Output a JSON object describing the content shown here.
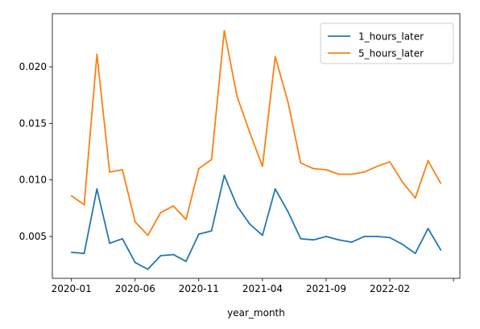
{
  "chart_data": {
    "type": "line",
    "title": "",
    "xlabel": "year_month",
    "ylabel": "",
    "x": [
      "2020-01",
      "2020-02",
      "2020-03",
      "2020-04",
      "2020-05",
      "2020-06",
      "2020-07",
      "2020-08",
      "2020-09",
      "2020-10",
      "2020-11",
      "2020-12",
      "2021-01",
      "2021-02",
      "2021-03",
      "2021-04",
      "2021-05",
      "2021-06",
      "2021-07",
      "2021-08",
      "2021-09",
      "2021-10",
      "2021-11",
      "2021-12",
      "2022-01",
      "2022-02",
      "2022-03",
      "2022-04",
      "2022-05",
      "2022-06"
    ],
    "x_ticks": [
      "2020-01",
      "2020-06",
      "2020-11",
      "2021-04",
      "2021-09",
      "2022-02",
      ""
    ],
    "y_ticks": [
      "0.005",
      "0.010",
      "0.015",
      "0.020"
    ],
    "y_tick_values": [
      0.005,
      0.01,
      0.015,
      0.02
    ],
    "ylim": [
      0.0013,
      0.0247
    ],
    "xlim": [
      -1.5,
      30.5
    ],
    "grid": false,
    "legend_position": "top-right",
    "series": [
      {
        "name": "1_hours_later",
        "color": "#1f77b4",
        "values": [
          0.0036,
          0.0035,
          0.0092,
          0.0044,
          0.0048,
          0.0027,
          0.0021,
          0.0033,
          0.0034,
          0.0028,
          0.0052,
          0.0055,
          0.0104,
          0.0077,
          0.0061,
          0.0051,
          0.0092,
          0.0072,
          0.0048,
          0.0047,
          0.005,
          0.0047,
          0.0045,
          0.005,
          0.005,
          0.0049,
          0.0043,
          0.0035,
          0.0057,
          0.0038
        ]
      },
      {
        "name": "5_hours_later",
        "color": "#ff7f0e",
        "values": [
          0.0086,
          0.0078,
          0.0211,
          0.0107,
          0.0109,
          0.0063,
          0.0051,
          0.0071,
          0.0077,
          0.0065,
          0.011,
          0.0118,
          0.0232,
          0.0174,
          0.0142,
          0.0112,
          0.0209,
          0.0169,
          0.0115,
          0.011,
          0.0109,
          0.0105,
          0.0105,
          0.0107,
          0.0112,
          0.0116,
          0.0098,
          0.0084,
          0.0117,
          0.0097
        ]
      }
    ]
  }
}
